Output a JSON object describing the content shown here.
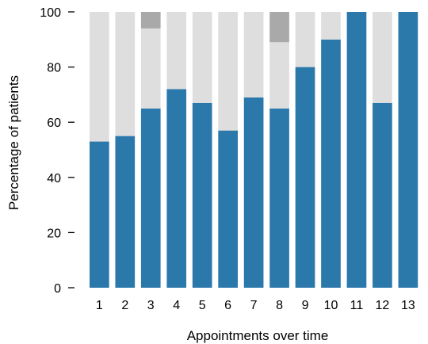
{
  "chart_data": {
    "type": "bar",
    "stacked": true,
    "xlabel": "Appointments over time",
    "ylabel": "Percentage of patients",
    "ylim": [
      0,
      100
    ],
    "yticks": [
      0,
      20,
      40,
      60,
      80,
      100
    ],
    "categories": [
      "1",
      "2",
      "3",
      "4",
      "5",
      "6",
      "7",
      "8",
      "9",
      "10",
      "11",
      "12",
      "13"
    ],
    "series": [
      {
        "color": "#2b78ab",
        "values": [
          53,
          55,
          65,
          72,
          67,
          57,
          69,
          65,
          80,
          90,
          100,
          67,
          100
        ]
      },
      {
        "color": "#dedede",
        "values": [
          47,
          45,
          29,
          28,
          33,
          43,
          31,
          24,
          20,
          10,
          0,
          33,
          0
        ]
      },
      {
        "color": "#a9a9a9",
        "values": [
          0,
          0,
          6,
          0,
          0,
          0,
          0,
          11,
          0,
          0,
          0,
          0,
          0
        ]
      }
    ],
    "grid": false,
    "legend": "none"
  }
}
